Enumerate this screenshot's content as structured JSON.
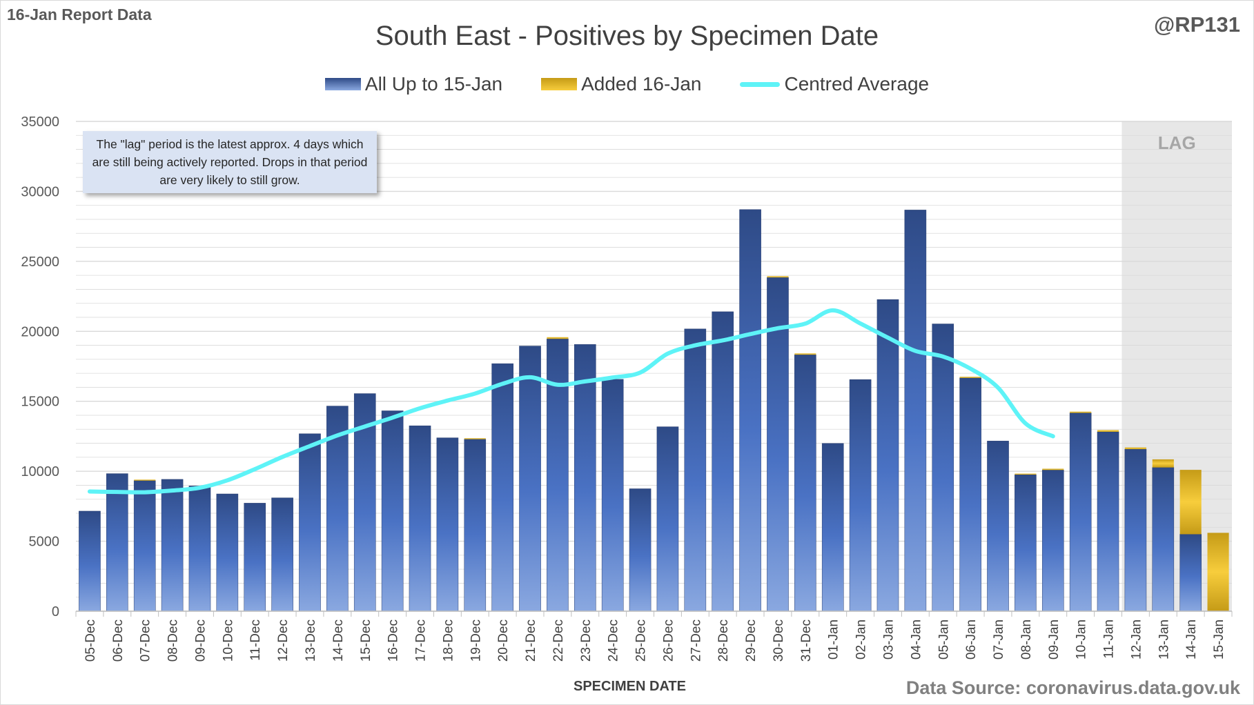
{
  "header": {
    "report_label": "16-Jan Report Data",
    "author_handle": "@RP131"
  },
  "note": {
    "text": "The \"lag\" period is the latest approx. 4 days which are still being actively reported.  Drops in that period are very likely to still grow."
  },
  "footer": {
    "data_source": "Data Source: coronavirus.data.gov.uk"
  },
  "colors": {
    "blue_top": "#2e4a86",
    "blue_mid": "#4a72c4",
    "blue_bottom": "#8aa8e0",
    "gold_top": "#c59b17",
    "gold_bottom": "#f7cd3c",
    "average_line": "#5ef3f7",
    "lag_shade": "#e7e7e7",
    "grid": "#d9d9d9"
  },
  "chart_data": {
    "type": "bar",
    "stacked": true,
    "title": "South East - Positives by Specimen Date",
    "xlabel": "SPECIMEN DATE",
    "ylabel": "",
    "ylim": [
      0,
      35000
    ],
    "yticks": [
      0,
      5000,
      10000,
      15000,
      20000,
      25000,
      30000,
      35000
    ],
    "grid": true,
    "legend_position": "top",
    "categories": [
      "05-Dec",
      "06-Dec",
      "07-Dec",
      "08-Dec",
      "09-Dec",
      "10-Dec",
      "11-Dec",
      "12-Dec",
      "13-Dec",
      "14-Dec",
      "15-Dec",
      "16-Dec",
      "17-Dec",
      "18-Dec",
      "19-Dec",
      "20-Dec",
      "21-Dec",
      "22-Dec",
      "23-Dec",
      "24-Dec",
      "25-Dec",
      "26-Dec",
      "27-Dec",
      "28-Dec",
      "29-Dec",
      "30-Dec",
      "31-Dec",
      "01-Jan",
      "02-Jan",
      "03-Jan",
      "04-Jan",
      "05-Jan",
      "06-Jan",
      "07-Jan",
      "08-Jan",
      "09-Jan",
      "10-Jan",
      "11-Jan",
      "12-Jan",
      "13-Jan",
      "14-Jan",
      "15-Jan"
    ],
    "series": [
      {
        "name": "All Up to 15-Jan",
        "kind": "bar",
        "values": [
          7150,
          9830,
          9330,
          9420,
          8950,
          8380,
          7720,
          8100,
          12680,
          14660,
          15550,
          14320,
          13250,
          12390,
          12290,
          17690,
          18950,
          19460,
          19060,
          16570,
          8750,
          13180,
          20170,
          21400,
          28700,
          23850,
          18330,
          11990,
          16550,
          22270,
          28670,
          20530,
          16670,
          12160,
          9760,
          10090,
          14170,
          12820,
          11580,
          10270,
          5500,
          0
        ]
      },
      {
        "name": "Added 16-Jan",
        "kind": "bar",
        "values": [
          0,
          0,
          70,
          0,
          0,
          0,
          0,
          0,
          0,
          0,
          0,
          0,
          0,
          0,
          70,
          0,
          0,
          120,
          0,
          0,
          0,
          0,
          0,
          0,
          0,
          90,
          90,
          0,
          0,
          0,
          0,
          0,
          80,
          0,
          70,
          90,
          90,
          120,
          120,
          580,
          4600,
          5600
        ]
      },
      {
        "name": "Centred Average",
        "kind": "line",
        "values": [
          8550,
          8520,
          8500,
          8620,
          8820,
          9350,
          10150,
          11020,
          11800,
          12560,
          13200,
          13830,
          14500,
          15050,
          15550,
          16250,
          16720,
          16180,
          16420,
          16700,
          17050,
          18400,
          19000,
          19350,
          19800,
          20220,
          20550,
          21500,
          20560,
          19550,
          18600,
          18200,
          17330,
          15980,
          13420,
          12500,
          null,
          null,
          null,
          null,
          null,
          null
        ]
      }
    ],
    "annotations": [
      {
        "text": "LAG",
        "from": "12-Jan",
        "to": "15-Jan"
      }
    ]
  }
}
